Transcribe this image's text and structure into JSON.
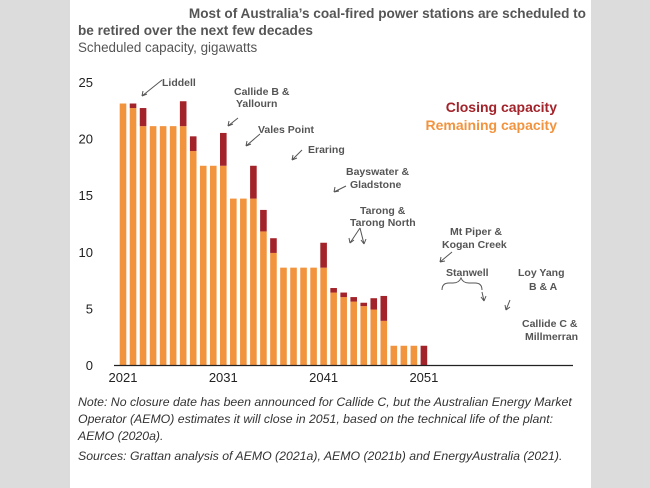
{
  "chart_data": {
    "type": "bar",
    "stacked": true,
    "title": "Most of Australia’s coal-fired power stations are scheduled to be retired over the next few decades",
    "title_line1": "Most of Australia’s coal-fired power stations are scheduled to",
    "title_line2": "be retired over the next few decades",
    "subtitle": "Scheduled capacity, gigawatts",
    "xlabel": "",
    "ylabel": "Scheduled capacity, gigawatts",
    "ylim": [
      0,
      25
    ],
    "y_ticks": [
      "0",
      "5",
      "10",
      "15",
      "20",
      "25"
    ],
    "x_ticks": [
      "2021",
      "2031",
      "2041",
      "2051"
    ],
    "grid": false,
    "legend": {
      "position": "top-right",
      "closing_label": "Closing capacity",
      "remaining_label": "Remaining capacity",
      "closing_color": "#a3232a",
      "remaining_color": "#f2933e"
    },
    "categories": [
      "2021",
      "2022",
      "2023",
      "2024",
      "2025",
      "2026",
      "2027",
      "2028",
      "2029",
      "2030",
      "2031",
      "2032",
      "2033",
      "2034",
      "2035",
      "2036",
      "2037",
      "2038",
      "2039",
      "2040",
      "2041",
      "2042",
      "2043",
      "2044",
      "2045",
      "2046",
      "2047",
      "2048",
      "2049",
      "2050",
      "2051"
    ],
    "series": [
      {
        "name": "Remaining capacity",
        "values": [
          23.1,
          22.7,
          21.1,
          21.1,
          21.1,
          21.1,
          21.1,
          18.9,
          17.6,
          17.6,
          17.6,
          14.7,
          14.7,
          14.7,
          11.8,
          9.9,
          8.6,
          8.6,
          8.6,
          8.6,
          8.6,
          6.4,
          6.0,
          5.6,
          5.2,
          4.9,
          3.9,
          1.7,
          1.7,
          1.7,
          0
        ]
      },
      {
        "name": "Closing capacity",
        "values": [
          0,
          0.4,
          1.6,
          0,
          0,
          0,
          2.2,
          1.3,
          0,
          0,
          2.9,
          0,
          0,
          2.9,
          1.9,
          1.3,
          0,
          0,
          0,
          0,
          2.2,
          0.4,
          0.4,
          0.4,
          0.3,
          1.0,
          2.2,
          0,
          0,
          0,
          1.7
        ]
      }
    ],
    "annotations": [
      {
        "text": "Liddell",
        "year": "2022"
      },
      {
        "text": "Callide B & Yallourn",
        "year": "2027"
      },
      {
        "text": "Vales Point",
        "year": "2028"
      },
      {
        "text": "Eraring",
        "year": "2031"
      },
      {
        "text": "Bayswater & Gladstone",
        "year": "2035"
      },
      {
        "text": "Tarong & Tarong North",
        "year": "2036"
      },
      {
        "text": "Mt Piper & Kogan Creek",
        "year": "2041"
      },
      {
        "text": "Stanwell",
        "year": "2042-2045"
      },
      {
        "text": "Loy Yang B & A",
        "year": "2047"
      },
      {
        "text": "Callide C & Millmerran",
        "year": "2051"
      }
    ]
  },
  "annotations_text": {
    "liddell": "Liddell",
    "callide_b_1": "Callide B &",
    "callide_b_2": "Yallourn",
    "vales_point": "Vales Point",
    "eraring": "Eraring",
    "bayswater_1": "Bayswater &",
    "bayswater_2": "Gladstone",
    "tarong_1": "Tarong &",
    "tarong_2": "Tarong North",
    "mtpiper_1": "Mt Piper &",
    "mtpiper_2": "Kogan Creek",
    "stanwell": "Stanwell",
    "loyyang_1": "Loy Yang",
    "loyyang_2": "B & A",
    "callide_c_1": "Callide C &",
    "callide_c_2": "Millmerran"
  },
  "note": "Note: No closure date has been announced for Callide C, but the Australian Energy Market Operator (AEMO) estimates it will close in 2051, based on the technical life of the plant: AEMO (2020a).",
  "sources": "Sources: Grattan analysis of AEMO (2021a), AEMO (2021b) and EnergyAustralia (2021)."
}
